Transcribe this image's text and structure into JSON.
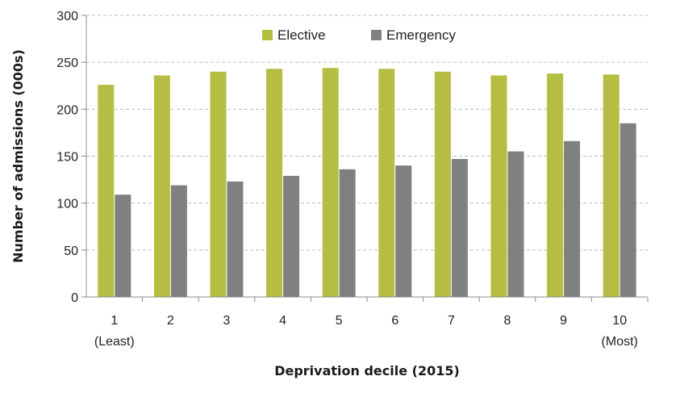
{
  "chart_data": {
    "type": "bar",
    "categories": [
      "1",
      "2",
      "3",
      "4",
      "5",
      "6",
      "7",
      "8",
      "9",
      "10"
    ],
    "category_sublabels": [
      "(Least)",
      "",
      "",
      "",
      "",
      "",
      "",
      "",
      "",
      "(Most)"
    ],
    "series": [
      {
        "name": "Elective",
        "color": "#b5be42",
        "values": [
          226,
          236,
          240,
          243,
          244,
          243,
          240,
          236,
          238,
          237
        ]
      },
      {
        "name": "Emergency",
        "color": "#808080",
        "values": [
          109,
          119,
          123,
          129,
          136,
          140,
          147,
          155,
          166,
          185
        ]
      }
    ],
    "xlabel": "Deprivation decile (2015)",
    "ylabel": "Number of admissions (000s)",
    "ylim": [
      0,
      300
    ],
    "yticks": [
      0,
      50,
      100,
      150,
      200,
      250,
      300
    ],
    "grid": true,
    "legend_position": "top-center"
  }
}
